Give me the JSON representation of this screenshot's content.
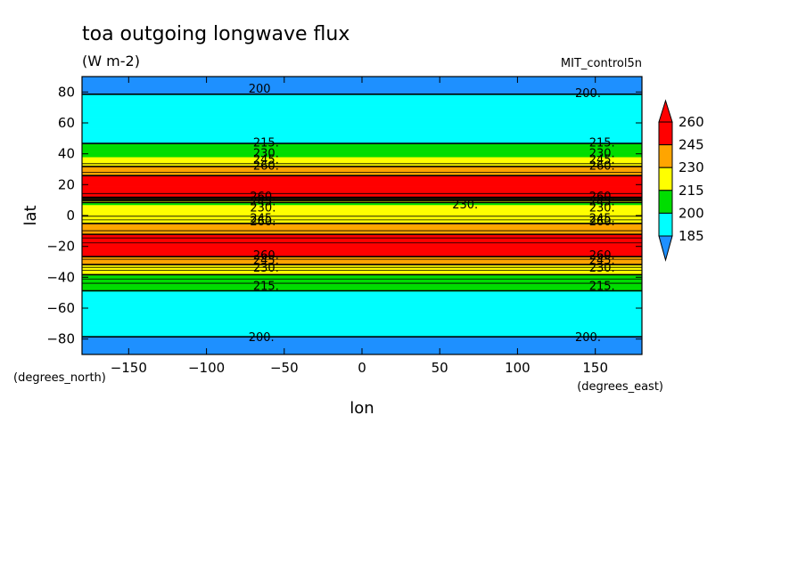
{
  "chart_data": {
    "type": "heatmap",
    "title": "toa outgoing longwave flux",
    "units": "(W m-2)",
    "dataset": "MIT_control5n",
    "xlabel": "lon",
    "ylabel": "lat",
    "xunit_label": "(degrees_east)",
    "yunit_label": "(degrees_north)",
    "xlim": [
      -180,
      180
    ],
    "ylim": [
      -90,
      90
    ],
    "xticks": [
      -150,
      -100,
      -50,
      0,
      50,
      100,
      150
    ],
    "yticks": [
      -80,
      -60,
      -40,
      -20,
      0,
      20,
      40,
      60,
      80
    ],
    "xtick_labels": [
      "−150",
      "−100",
      "−50",
      "0",
      "50",
      "100",
      "150"
    ],
    "ytick_labels": [
      "−80",
      "−60",
      "−40",
      "−20",
      "0",
      "20",
      "40",
      "60",
      "80"
    ],
    "colorbar": {
      "levels": [
        185,
        200,
        215,
        230,
        245,
        260
      ],
      "labels": [
        "185",
        "200",
        "215",
        "230",
        "245",
        "260"
      ],
      "colors": [
        "#1e90ff",
        "#00ffff",
        "#00dd00",
        "#ffff00",
        "#ffa500",
        "#ff0000"
      ],
      "extend": "both"
    },
    "zonal_profile": {
      "lat": [
        -90,
        -85,
        -80,
        -75,
        -60,
        -50,
        -45,
        -35,
        -30,
        -26,
        -15,
        0,
        3,
        6,
        8,
        12,
        15,
        25,
        30,
        35,
        45,
        55,
        75,
        80,
        85,
        90
      ],
      "value": [
        188,
        192,
        198,
        205,
        210,
        214,
        218,
        236,
        250,
        262,
        266,
        234,
        236,
        234,
        226,
        262,
        266,
        262,
        250,
        236,
        216,
        210,
        205,
        198,
        192,
        188
      ]
    },
    "contour_labels": [
      {
        "text": "200",
        "lon": -73,
        "lat": 82
      },
      {
        "text": "200.",
        "lon": 137,
        "lat": 79
      },
      {
        "text": "215.",
        "lon": -70,
        "lat": 47
      },
      {
        "text": "215.",
        "lon": 146,
        "lat": 47
      },
      {
        "text": "230.",
        "lon": -70,
        "lat": 40
      },
      {
        "text": "230.",
        "lon": 146,
        "lat": 40
      },
      {
        "text": "245.",
        "lon": -70,
        "lat": 36
      },
      {
        "text": "245.",
        "lon": 146,
        "lat": 36
      },
      {
        "text": "260.",
        "lon": -70,
        "lat": 32
      },
      {
        "text": "260.",
        "lon": 146,
        "lat": 32
      },
      {
        "text": "260.",
        "lon": -72,
        "lat": 12
      },
      {
        "text": "260.",
        "lon": 146,
        "lat": 12
      },
      {
        "text": "245.",
        "lon": -72,
        "lat": 9
      },
      {
        "text": "245.",
        "lon": 146,
        "lat": 9
      },
      {
        "text": "230.",
        "lon": -72,
        "lat": 5
      },
      {
        "text": "230.",
        "lon": 146,
        "lat": 5
      },
      {
        "text": "230.",
        "lon": 58,
        "lat": 7
      },
      {
        "text": "245.",
        "lon": -72,
        "lat": -2
      },
      {
        "text": "245.",
        "lon": 146,
        "lat": -2
      },
      {
        "text": "260.",
        "lon": -72,
        "lat": -4
      },
      {
        "text": "260.",
        "lon": 146,
        "lat": -4
      },
      {
        "text": "260.",
        "lon": -70,
        "lat": -26
      },
      {
        "text": "260.",
        "lon": 146,
        "lat": -26
      },
      {
        "text": "245.",
        "lon": -70,
        "lat": -29
      },
      {
        "text": "245.",
        "lon": 146,
        "lat": -29
      },
      {
        "text": "230.",
        "lon": -70,
        "lat": -34
      },
      {
        "text": "230.",
        "lon": 146,
        "lat": -34
      },
      {
        "text": "215.",
        "lon": -70,
        "lat": -46
      },
      {
        "text": "215.",
        "lon": 146,
        "lat": -46
      },
      {
        "text": "200.",
        "lon": -73,
        "lat": -79
      },
      {
        "text": "200.",
        "lon": 137,
        "lat": -79
      }
    ]
  }
}
